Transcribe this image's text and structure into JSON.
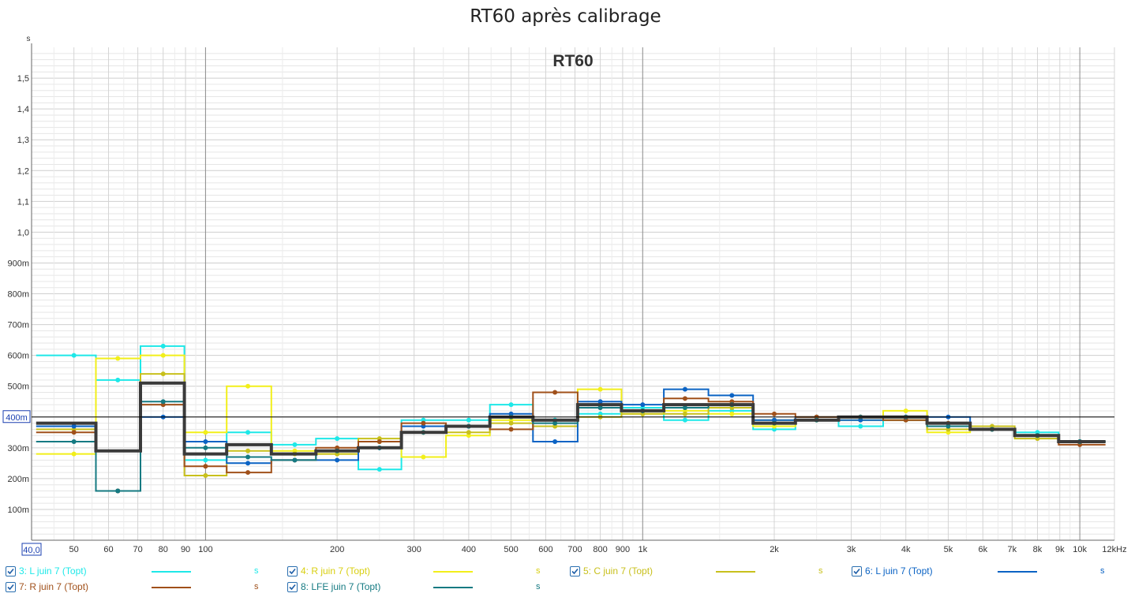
{
  "chart_data": {
    "type": "line",
    "title": "RT60 après calibrage",
    "overlay_label": "RT60",
    "ylabel": "s",
    "xlabel": "",
    "x_scale": "log",
    "xlim": [
      40,
      12000
    ],
    "ylim": [
      0,
      1.6
    ],
    "x_ticks": [
      {
        "v": 40,
        "label": "40,0"
      },
      {
        "v": 50,
        "label": "50"
      },
      {
        "v": 60,
        "label": "60"
      },
      {
        "v": 70,
        "label": "70"
      },
      {
        "v": 80,
        "label": "80"
      },
      {
        "v": 90,
        "label": "90"
      },
      {
        "v": 100,
        "label": "100"
      },
      {
        "v": 200,
        "label": "200"
      },
      {
        "v": 300,
        "label": "300"
      },
      {
        "v": 400,
        "label": "400"
      },
      {
        "v": 500,
        "label": "500"
      },
      {
        "v": 600,
        "label": "600"
      },
      {
        "v": 700,
        "label": "700"
      },
      {
        "v": 800,
        "label": "800"
      },
      {
        "v": 900,
        "label": "900"
      },
      {
        "v": 1000,
        "label": "1k"
      },
      {
        "v": 2000,
        "label": "2k"
      },
      {
        "v": 3000,
        "label": "3k"
      },
      {
        "v": 4000,
        "label": "4k"
      },
      {
        "v": 5000,
        "label": "5k"
      },
      {
        "v": 6000,
        "label": "6k"
      },
      {
        "v": 7000,
        "label": "7k"
      },
      {
        "v": 8000,
        "label": "8k"
      },
      {
        "v": 9000,
        "label": "9k"
      },
      {
        "v": 10000,
        "label": "10k"
      },
      {
        "v": 12000,
        "label": "12kHz"
      }
    ],
    "y_ticks": [
      {
        "v": 0.1,
        "label": "100m"
      },
      {
        "v": 0.2,
        "label": "200m"
      },
      {
        "v": 0.3,
        "label": "300m"
      },
      {
        "v": 0.4,
        "label": "400m"
      },
      {
        "v": 0.5,
        "label": "500m"
      },
      {
        "v": 0.6,
        "label": "600m"
      },
      {
        "v": 0.7,
        "label": "700m"
      },
      {
        "v": 0.8,
        "label": "800m"
      },
      {
        "v": 0.9,
        "label": "900m"
      },
      {
        "v": 1.0,
        "label": "1,0"
      },
      {
        "v": 1.1,
        "label": "1,1"
      },
      {
        "v": 1.2,
        "label": "1,2"
      },
      {
        "v": 1.3,
        "label": "1,3"
      },
      {
        "v": 1.4,
        "label": "1,4"
      },
      {
        "v": 1.5,
        "label": "1,5"
      }
    ],
    "reference_line": {
      "value": 0.4,
      "label": "400m"
    },
    "grid": true,
    "band_centers": [
      50,
      63,
      80,
      100,
      125,
      160,
      200,
      250,
      315,
      400,
      500,
      630,
      800,
      1000,
      1250,
      1600,
      2000,
      2500,
      3150,
      4000,
      5000,
      6300,
      8000,
      10000
    ],
    "series": [
      {
        "name": "3: L juin 7 (Topt)",
        "color": "#1ee8e8",
        "width": 2,
        "values": [
          0.6,
          0.52,
          0.63,
          0.26,
          0.35,
          0.31,
          0.33,
          0.23,
          0.39,
          0.39,
          0.44,
          0.39,
          0.41,
          0.43,
          0.39,
          0.42,
          0.36,
          0.39,
          0.37,
          0.39,
          0.38,
          0.36,
          0.35,
          0.32
        ]
      },
      {
        "name": "4: R juin 7 (Topt)",
        "color": "#f2ef1a",
        "width": 2,
        "values": [
          0.28,
          0.59,
          0.6,
          0.35,
          0.5,
          0.29,
          0.28,
          0.32,
          0.27,
          0.34,
          0.39,
          0.37,
          0.49,
          0.41,
          0.42,
          0.41,
          0.37,
          0.39,
          0.39,
          0.42,
          0.35,
          0.36,
          0.34,
          0.32
        ]
      },
      {
        "name": "5: C juin 7 (Topt)",
        "color": "#c8c01c",
        "width": 2,
        "values": [
          0.36,
          0.16,
          0.54,
          0.21,
          0.29,
          0.28,
          0.28,
          0.33,
          0.35,
          0.35,
          0.38,
          0.37,
          0.4,
          0.41,
          0.41,
          0.43,
          0.39,
          0.4,
          0.4,
          0.39,
          0.36,
          0.37,
          0.33,
          0.32
        ]
      },
      {
        "name": "6: L juin 7 (Topt)",
        "color": "#0b63c4",
        "width": 2,
        "values": [
          0.37,
          0.16,
          0.4,
          0.32,
          0.25,
          0.26,
          0.26,
          0.3,
          0.37,
          0.37,
          0.41,
          0.32,
          0.45,
          0.44,
          0.49,
          0.47,
          0.39,
          0.4,
          0.39,
          0.4,
          0.4,
          0.36,
          0.34,
          0.32
        ]
      },
      {
        "name": "7: R juin 7 (Topt)",
        "color": "#a0501a",
        "width": 2,
        "values": [
          0.35,
          0.16,
          0.44,
          0.24,
          0.22,
          0.26,
          0.3,
          0.32,
          0.38,
          0.37,
          0.36,
          0.48,
          0.43,
          0.42,
          0.46,
          0.45,
          0.41,
          0.4,
          0.4,
          0.39,
          0.38,
          0.36,
          0.34,
          0.31
        ]
      },
      {
        "name": "8: LFE juin 7 (Topt)",
        "color": "#157a82",
        "width": 2,
        "values": [
          0.32,
          0.16,
          0.45,
          0.3,
          0.27,
          0.26,
          0.29,
          0.3,
          0.35,
          0.37,
          0.4,
          0.38,
          0.43,
          0.42,
          0.43,
          0.44,
          0.38,
          0.39,
          0.4,
          0.4,
          0.37,
          0.36,
          0.34,
          0.32
        ]
      },
      {
        "name": "",
        "color": "#3a3a3a",
        "width": 4,
        "markers": false,
        "values": [
          0.38,
          0.29,
          0.51,
          0.28,
          0.31,
          0.28,
          0.29,
          0.3,
          0.35,
          0.37,
          0.4,
          0.39,
          0.44,
          0.42,
          0.44,
          0.44,
          0.38,
          0.39,
          0.4,
          0.4,
          0.38,
          0.36,
          0.34,
          0.32
        ]
      }
    ]
  },
  "legend": {
    "unit_label": "s",
    "items": [
      {
        "label": "3: L juin 7 (Topt)",
        "color": "#1ee8e8",
        "checked": true
      },
      {
        "label": "4: R juin 7 (Topt)",
        "color": "#f2ef1a",
        "checked": true
      },
      {
        "label": "5: C juin 7 (Topt)",
        "color": "#c8c01c",
        "checked": true
      },
      {
        "label": "6: L juin 7 (Topt)",
        "color": "#0b63c4",
        "checked": true
      },
      {
        "label": "7: R juin 7 (Topt)",
        "color": "#a0501a",
        "checked": true
      },
      {
        "label": "8: LFE juin 7 (Topt)",
        "color": "#157a82",
        "checked": true
      }
    ]
  }
}
